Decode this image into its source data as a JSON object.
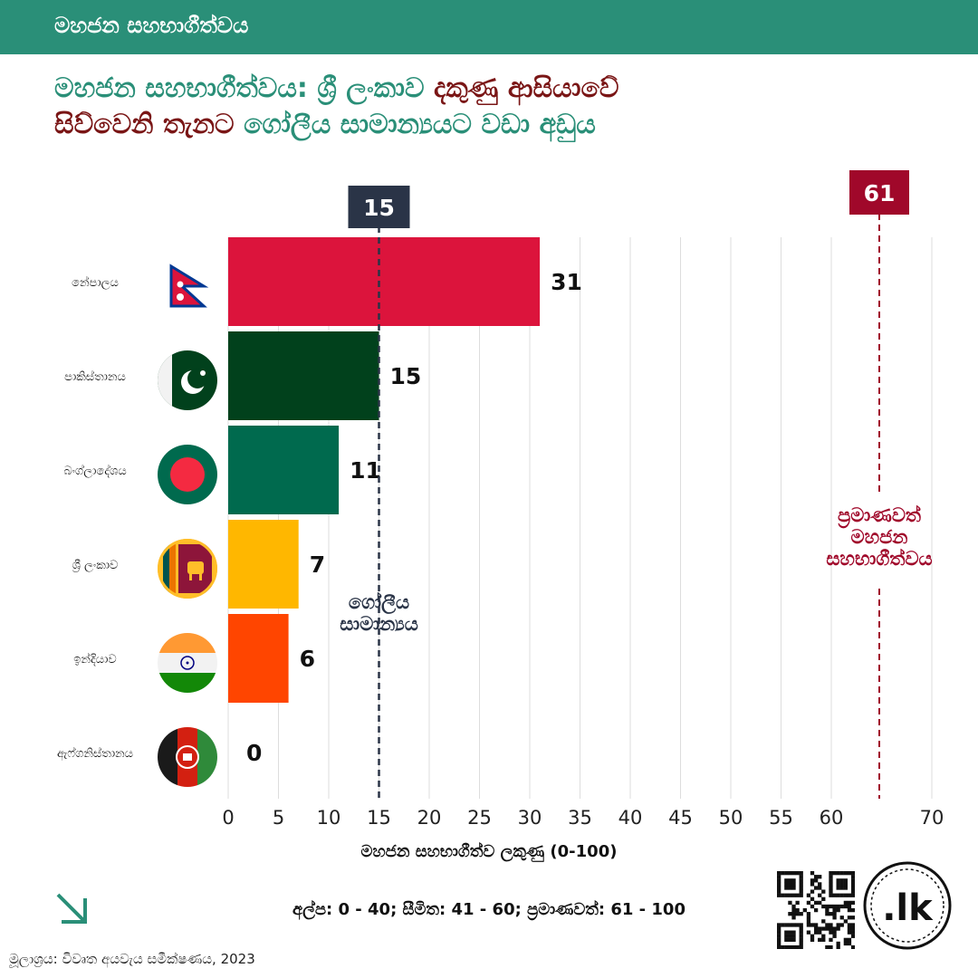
{
  "header": {
    "title": "මහජන සහභාගීත්වය"
  },
  "title": {
    "part1": "මහජන සහභාගීත්වය: ශ්‍රී ලංකාව ",
    "part2": "දකුණු ආසියාවේ",
    "part3": "සිව්වෙනි තැනට ",
    "part4": "ගෝලීය සාමාන්‍යයට වඩා අඩුය"
  },
  "chart_data": {
    "type": "bar",
    "orientation": "horizontal",
    "categories": [
      "නේපාලය",
      "පාකිස්තානය",
      "බංග්ලාදේශය",
      "ශ්‍රී ලංකාව",
      "ඉන්දියාව",
      "ඇෆ්ගනිස්තානය"
    ],
    "values": [
      31,
      15,
      11,
      7,
      6,
      0
    ],
    "bar_colors": [
      "#dc143c",
      "#01411c",
      "#006a4e",
      "#ffb700",
      "#ff4500",
      "#333333"
    ],
    "xticks": [
      0,
      5,
      10,
      15,
      20,
      25,
      30,
      35,
      40,
      45,
      50,
      55,
      60,
      70
    ],
    "xlabel": "මහජන සහභාගීත්ව ලකුණු (0-100)",
    "reference_lines": [
      {
        "value": 15,
        "badge": "15",
        "label_lines": [
          "ගෝලීය",
          "සාමාන්‍යය"
        ],
        "color": "#2a3447"
      },
      {
        "value": 61,
        "badge": "61",
        "label_lines": [
          "ප්‍රමාණවත්",
          "මහජන",
          "සහභාගීත්වය"
        ],
        "color": "#a0082a"
      }
    ],
    "grid": true
  },
  "legend": {
    "text": "අල්ප: 0 - 40; සීමිත: 41 - 60; ප්‍රමාණවත්: 61 - 100"
  },
  "source": {
    "text": "මූලාශ්‍රය: විවෘත අයවැය සමීක්ෂණය, 2023"
  },
  "logo": {
    "text": ".lk"
  },
  "icons": [
    "flag-nepal-icon",
    "flag-pakistan-icon",
    "flag-bangladesh-icon",
    "flag-sri-lanka-icon",
    "flag-india-icon",
    "flag-afghanistan-icon",
    "arrow-down-right-icon",
    "qr-code-icon"
  ]
}
